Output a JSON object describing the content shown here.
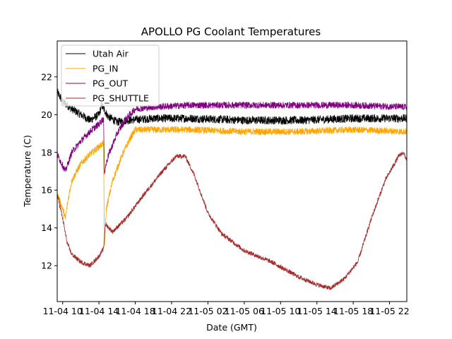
{
  "chart_data": {
    "type": "line",
    "title": "APOLLO PG Coolant Temperatures",
    "xlabel": "Date (GMT)",
    "ylabel": "Temperature (C)",
    "x_unit": "hours since 11-04 00:00 GMT",
    "xlim": [
      9.4,
      47.9
    ],
    "ylim": [
      10.1,
      23.9
    ],
    "x_ticks": [
      {
        "value": 10,
        "label": "11-04 10"
      },
      {
        "value": 14,
        "label": "11-04 14"
      },
      {
        "value": 18,
        "label": "11-04 18"
      },
      {
        "value": 22,
        "label": "11-04 22"
      },
      {
        "value": 26,
        "label": "11-05 02"
      },
      {
        "value": 30,
        "label": "11-05 06"
      },
      {
        "value": 34,
        "label": "11-05 10"
      },
      {
        "value": 38,
        "label": "11-05 14"
      },
      {
        "value": 42,
        "label": "11-05 18"
      },
      {
        "value": 46,
        "label": "11-05 22"
      }
    ],
    "y_ticks": [
      {
        "value": 12,
        "label": "12"
      },
      {
        "value": 14,
        "label": "14"
      },
      {
        "value": 16,
        "label": "16"
      },
      {
        "value": 18,
        "label": "18"
      },
      {
        "value": 20,
        "label": "20"
      },
      {
        "value": 22,
        "label": "22"
      }
    ],
    "grid": false,
    "legend_position": "top-left",
    "series": [
      {
        "name": "Utah Air",
        "color": "#000000",
        "noise": 0.22,
        "points": [
          [
            9.4,
            21.2
          ],
          [
            10,
            20.7
          ],
          [
            11,
            20.3
          ],
          [
            12,
            20.0
          ],
          [
            13,
            19.7
          ],
          [
            14,
            20.0
          ],
          [
            14.3,
            20.5
          ],
          [
            15,
            19.9
          ],
          [
            16,
            19.6
          ],
          [
            17,
            19.7
          ],
          [
            20,
            19.8
          ],
          [
            24,
            19.8
          ],
          [
            30,
            19.7
          ],
          [
            36,
            19.7
          ],
          [
            42,
            19.8
          ],
          [
            47.9,
            19.8
          ]
        ]
      },
      {
        "name": "PG_IN",
        "color": "#ffa500",
        "noise": 0.18,
        "points": [
          [
            9.4,
            15.8
          ],
          [
            10,
            15.0
          ],
          [
            10.3,
            14.5
          ],
          [
            10.6,
            15.5
          ],
          [
            11,
            16.5
          ],
          [
            12,
            17.4
          ],
          [
            13,
            17.9
          ],
          [
            14,
            18.3
          ],
          [
            14.5,
            18.5
          ],
          [
            14.6,
            13.0
          ],
          [
            14.8,
            15.0
          ],
          [
            15.5,
            16.5
          ],
          [
            16.5,
            17.8
          ],
          [
            17.5,
            18.8
          ],
          [
            18,
            19.2
          ],
          [
            20,
            19.2
          ],
          [
            24,
            19.2
          ],
          [
            30,
            19.1
          ],
          [
            36,
            19.1
          ],
          [
            42,
            19.2
          ],
          [
            47.9,
            19.1
          ]
        ]
      },
      {
        "name": "PG_OUT",
        "color": "#800080",
        "noise": 0.18,
        "points": [
          [
            9.4,
            17.9
          ],
          [
            10,
            17.3
          ],
          [
            10.3,
            17.0
          ],
          [
            11,
            18.0
          ],
          [
            12,
            18.6
          ],
          [
            13,
            19.1
          ],
          [
            14,
            19.5
          ],
          [
            14.5,
            19.8
          ],
          [
            14.6,
            17.0
          ],
          [
            15,
            17.8
          ],
          [
            16,
            19.0
          ],
          [
            17,
            19.8
          ],
          [
            18,
            20.3
          ],
          [
            20,
            20.4
          ],
          [
            24,
            20.5
          ],
          [
            30,
            20.5
          ],
          [
            36,
            20.5
          ],
          [
            42,
            20.5
          ],
          [
            47.9,
            20.4
          ]
        ]
      },
      {
        "name": "PG_SHUTTLE",
        "color": "#a52a2a",
        "noise": 0.12,
        "points": [
          [
            9.4,
            15.8
          ],
          [
            10,
            14.5
          ],
          [
            10.5,
            13.2
          ],
          [
            11,
            12.6
          ],
          [
            12,
            12.2
          ],
          [
            13,
            12.0
          ],
          [
            14,
            12.5
          ],
          [
            14.5,
            12.9
          ],
          [
            14.7,
            14.2
          ],
          [
            15.5,
            13.8
          ],
          [
            17,
            14.5
          ],
          [
            19,
            15.8
          ],
          [
            21,
            17.0
          ],
          [
            22.5,
            17.8
          ],
          [
            23.5,
            17.8
          ],
          [
            24.5,
            16.8
          ],
          [
            26,
            14.8
          ],
          [
            27.5,
            13.7
          ],
          [
            30,
            12.8
          ],
          [
            33,
            12.2
          ],
          [
            36,
            11.4
          ],
          [
            38,
            11.0
          ],
          [
            39.5,
            10.8
          ],
          [
            41,
            11.3
          ],
          [
            42.5,
            12.2
          ],
          [
            44,
            14.5
          ],
          [
            45.5,
            16.5
          ],
          [
            47,
            17.8
          ],
          [
            47.5,
            18.0
          ],
          [
            47.9,
            17.6
          ]
        ]
      }
    ]
  }
}
